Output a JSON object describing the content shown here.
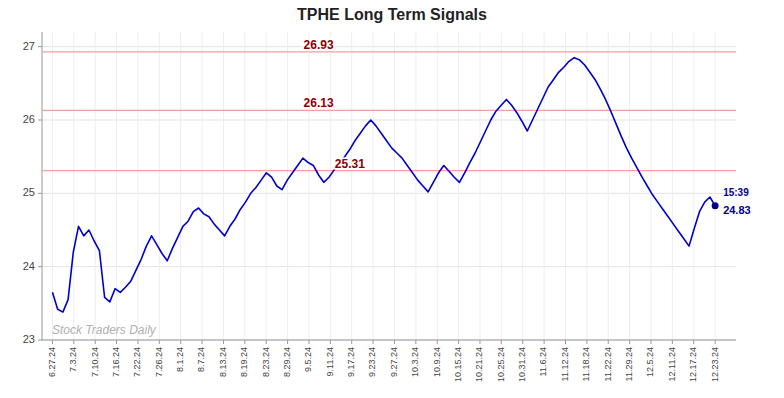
{
  "chart_data": {
    "type": "line",
    "title": "TPHE Long Term Signals",
    "color": "#0000cc",
    "x": [
      0,
      1,
      2,
      3,
      4,
      5,
      6,
      7,
      8,
      9,
      10,
      11,
      12,
      13,
      14,
      15,
      16,
      17,
      18,
      19,
      20,
      21,
      22,
      23,
      24,
      25,
      26,
      27,
      28,
      29,
      30,
      31,
      32,
      33,
      34,
      35,
      36,
      37,
      38,
      39,
      40,
      41,
      42,
      43,
      44,
      45,
      46,
      47,
      48,
      49,
      50,
      51,
      52,
      53,
      54,
      55,
      56,
      57,
      58,
      59,
      60,
      61,
      62,
      63,
      64,
      65,
      66,
      67,
      68,
      69,
      70,
      71,
      72,
      73,
      74,
      75,
      76,
      77,
      78,
      79,
      80,
      81,
      82,
      83,
      84,
      85,
      86,
      87,
      88,
      89,
      90,
      91,
      92,
      93,
      94,
      95,
      96,
      97,
      98,
      99,
      100,
      101,
      102,
      103,
      104,
      105,
      106,
      107,
      108,
      109,
      110,
      111,
      112,
      113,
      114,
      115,
      116,
      117,
      118,
      119,
      120,
      121,
      122,
      123,
      124,
      125,
      126,
      127
    ],
    "values": [
      23.65,
      23.42,
      23.38,
      23.55,
      24.2,
      24.55,
      24.42,
      24.5,
      24.35,
      24.22,
      23.58,
      23.52,
      23.7,
      23.65,
      23.72,
      23.8,
      23.95,
      24.1,
      24.28,
      24.42,
      24.3,
      24.18,
      24.08,
      24.25,
      24.4,
      24.55,
      24.62,
      24.75,
      24.8,
      24.72,
      24.68,
      24.58,
      24.5,
      24.42,
      24.55,
      24.65,
      24.78,
      24.88,
      25.0,
      25.08,
      25.18,
      25.28,
      25.22,
      25.1,
      25.05,
      25.18,
      25.28,
      25.38,
      25.48,
      25.42,
      25.38,
      25.25,
      25.15,
      25.22,
      25.32,
      25.42,
      25.5,
      25.6,
      25.72,
      25.82,
      25.92,
      26.0,
      25.92,
      25.82,
      25.72,
      25.62,
      25.55,
      25.48,
      25.38,
      25.28,
      25.18,
      25.1,
      25.02,
      25.15,
      25.28,
      25.38,
      25.3,
      25.22,
      25.15,
      25.28,
      25.42,
      25.55,
      25.7,
      25.85,
      26.0,
      26.12,
      26.2,
      26.28,
      26.2,
      26.1,
      25.98,
      25.85,
      26.0,
      26.15,
      26.3,
      26.45,
      26.55,
      26.65,
      26.72,
      26.8,
      26.85,
      26.82,
      26.75,
      26.65,
      26.55,
      26.42,
      26.28,
      26.12,
      25.95,
      25.78,
      25.62,
      25.48,
      25.35,
      25.22,
      25.1,
      24.98,
      24.88,
      24.78,
      24.68,
      24.58,
      24.48,
      24.38,
      24.28,
      24.52,
      24.75,
      24.88,
      24.95,
      24.83
    ],
    "xlim": [
      -2,
      131
    ],
    "xticks": [
      {
        "value": 0,
        "label": "6.27.24"
      },
      {
        "value": 4.0968,
        "label": "7.3.24"
      },
      {
        "value": 8.1935,
        "label": "7.10.24"
      },
      {
        "value": 12.2903,
        "label": "7.16.24"
      },
      {
        "value": 16.3871,
        "label": "7.22.24"
      },
      {
        "value": 20.4839,
        "label": "7.26.24"
      },
      {
        "value": 24.5806,
        "label": "8.1.24"
      },
      {
        "value": 28.6774,
        "label": "8.7.24"
      },
      {
        "value": 32.7742,
        "label": "8.13.24"
      },
      {
        "value": 36.871,
        "label": "8.19.24"
      },
      {
        "value": 40.9677,
        "label": "8.23.24"
      },
      {
        "value": 45.0645,
        "label": "8.29.24"
      },
      {
        "value": 49.1613,
        "label": "9.5.24"
      },
      {
        "value": 53.2581,
        "label": "9.11.24"
      },
      {
        "value": 57.3548,
        "label": "9.17.24"
      },
      {
        "value": 61.4516,
        "label": "9.23.24"
      },
      {
        "value": 65.5484,
        "label": "9.27.24"
      },
      {
        "value": 69.6452,
        "label": "10.3.24"
      },
      {
        "value": 73.7419,
        "label": "10.9.24"
      },
      {
        "value": 77.8387,
        "label": "10.15.24"
      },
      {
        "value": 81.9355,
        "label": "10.21.24"
      },
      {
        "value": 86.0323,
        "label": "10.25.24"
      },
      {
        "value": 90.129,
        "label": "10.31.24"
      },
      {
        "value": 94.2258,
        "label": "11.6.24"
      },
      {
        "value": 98.3226,
        "label": "11.12.24"
      },
      {
        "value": 102.4194,
        "label": "11.18.24"
      },
      {
        "value": 106.5161,
        "label": "11.22.24"
      },
      {
        "value": 110.6129,
        "label": "11.29.24"
      },
      {
        "value": 114.7097,
        "label": "12.5.24"
      },
      {
        "value": 118.8065,
        "label": "12.11.24"
      },
      {
        "value": 122.9032,
        "label": "12.17.24"
      },
      {
        "value": 127,
        "label": "12.23.24"
      }
    ],
    "ylim": [
      23.0,
      27.2
    ],
    "yticks": [
      23,
      24,
      25,
      26,
      27
    ],
    "reference_lines": [
      26.93,
      26.13,
      25.31
    ],
    "annotations": [
      "15:39",
      "Stock Traders Daily"
    ],
    "grid": true
  }
}
